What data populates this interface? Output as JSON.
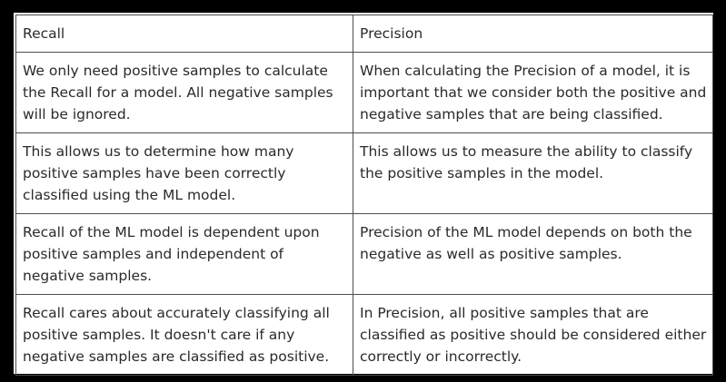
{
  "table": {
    "headers": [
      "Recall",
      "Precision"
    ],
    "rows": [
      [
        "We only need positive samples to calculate the Recall for a model. All negative samples will be ignored.",
        "When calculating the Precision of a model, it is important that we consider both the positive and negative samples that are being classified."
      ],
      [
        "This allows us to determine how many positive samples have been correctly classified using the ML model.",
        "This allows us to measure the ability to classify the positive samples in the model."
      ],
      [
        "Recall of the ML model is dependent upon positive samples and independent of negative samples.",
        "Precision of the ML model depends on both the negative as well as positive samples."
      ],
      [
        "Recall cares about accurately classifying all positive samples. It doesn't care if any negative samples are classified as positive.",
        "In Precision, all positive samples that are classified as positive should be considered either correctly or incorrectly."
      ]
    ]
  }
}
